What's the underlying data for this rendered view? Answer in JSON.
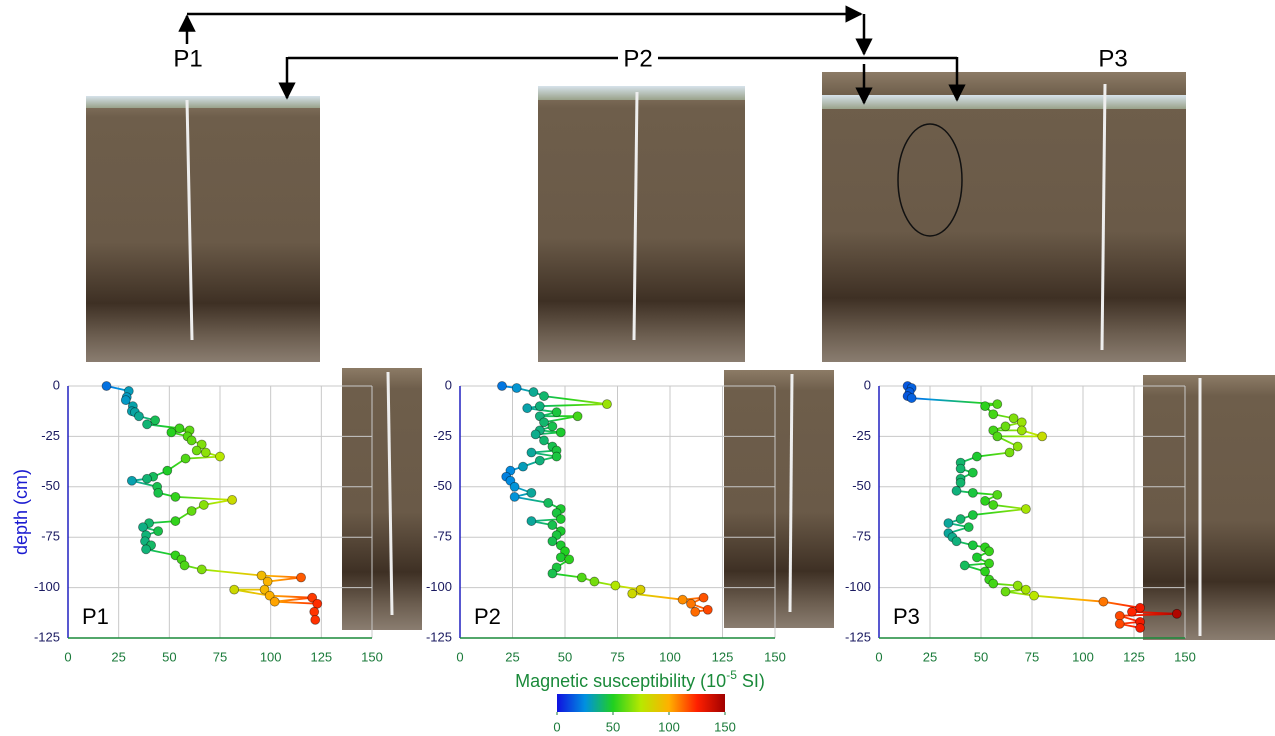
{
  "labels": [
    "P1",
    "P2",
    "P3"
  ],
  "shared_xlabel": {
    "parts": [
      "Magnetic susceptibility (10",
      "-5",
      " SI)"
    ]
  },
  "colorbar": {
    "lim": [
      0,
      150
    ],
    "ticks": [
      0,
      50,
      100,
      150
    ],
    "colors": [
      "#1010e0",
      "#0090e0",
      "#20d020",
      "#b8e800",
      "#ffb000",
      "#ff2000",
      "#a00000"
    ]
  },
  "chart_data": [
    {
      "type": "scatter",
      "title": "P1",
      "ylabel": "depth (cm)",
      "xlim": [
        0,
        150
      ],
      "ylim": [
        -125,
        0
      ],
      "xticks": [
        0,
        25,
        50,
        75,
        100,
        125,
        150
      ],
      "yticks": [
        0,
        -25,
        -50,
        -75,
        -100,
        -125
      ],
      "grid": true,
      "x": [
        19,
        30,
        29,
        28.5,
        32,
        31.5,
        33,
        35,
        43,
        39,
        55,
        60,
        51,
        59,
        61,
        66,
        63.5,
        68,
        75,
        58,
        49,
        42,
        39,
        31.5,
        44,
        44.5,
        53,
        81,
        67,
        61,
        53,
        40,
        37,
        44.5,
        38.5,
        38,
        41,
        38.5,
        53,
        56,
        57.5,
        66,
        95.5,
        115,
        98.5,
        97,
        82,
        99.5,
        120.5,
        102,
        123,
        121.5,
        122
      ],
      "y": [
        0,
        -2.5,
        -5.5,
        -7,
        -10,
        -12.5,
        -13,
        -15,
        -17,
        -19,
        -21,
        -22,
        -23,
        -25,
        -27,
        -29,
        -32,
        -33,
        -35,
        -36,
        -42,
        -45,
        -46,
        -47,
        -50,
        -53,
        -55,
        -56.5,
        -59,
        -62,
        -67,
        -68,
        -70,
        -72,
        -74,
        -77,
        -79,
        -81,
        -84,
        -86,
        -89,
        -91,
        -94,
        -95,
        -97,
        -101,
        -101,
        -104,
        -105,
        -107,
        -108,
        -112,
        -116
      ]
    },
    {
      "type": "scatter",
      "title": "P2",
      "xlim": [
        0,
        150
      ],
      "ylim": [
        -125,
        0
      ],
      "xticks": [
        0,
        25,
        50,
        75,
        100,
        125,
        150
      ],
      "yticks": [
        0,
        -25,
        -50,
        -75,
        -100,
        -125
      ],
      "grid": true,
      "x": [
        20,
        27,
        35,
        40,
        70,
        38,
        32,
        46,
        38,
        56,
        40,
        44,
        38,
        48,
        36,
        40,
        44,
        46,
        34,
        46,
        38,
        30,
        24,
        22,
        24,
        26,
        34,
        26,
        42,
        48,
        46,
        48,
        34,
        44,
        48,
        46,
        44,
        48,
        50,
        48,
        52,
        46,
        44,
        58,
        64,
        74,
        86,
        82,
        106,
        116,
        110,
        118,
        112
      ],
      "y": [
        0,
        -1,
        -3,
        -5,
        -9,
        -10,
        -11,
        -13,
        -15,
        -15,
        -18,
        -20,
        -22,
        -23,
        -24,
        -27,
        -30,
        -32,
        -33,
        -35,
        -37,
        -40,
        -42,
        -45,
        -47,
        -50,
        -53,
        -55,
        -58,
        -61,
        -63,
        -66,
        -67,
        -69,
        -72,
        -74,
        -77,
        -79,
        -82,
        -85,
        -86,
        -90,
        -93,
        -95,
        -97,
        -99,
        -101,
        -103,
        -106,
        -105,
        -108,
        -111,
        -112
      ]
    },
    {
      "type": "scatter",
      "title": "P3",
      "xlim": [
        0,
        150
      ],
      "ylim": [
        -125,
        0
      ],
      "xticks": [
        0,
        25,
        50,
        75,
        100,
        125,
        150
      ],
      "yticks": [
        0,
        -25,
        -50,
        -75,
        -100,
        -125
      ],
      "grid": true,
      "x": [
        14,
        16,
        15,
        14,
        16,
        58,
        52,
        56,
        66,
        70,
        62,
        56,
        70,
        80,
        58,
        68,
        64,
        48,
        40,
        40,
        46,
        40,
        40,
        38,
        46,
        58,
        52,
        56,
        72,
        46,
        40,
        34,
        44,
        34,
        36,
        38,
        46,
        52,
        54,
        48,
        54,
        42,
        52,
        54,
        56,
        68,
        72,
        62,
        76,
        110,
        128,
        124,
        146,
        118,
        128,
        118,
        128
      ],
      "y": [
        0,
        -1,
        -3,
        -5,
        -6,
        -9,
        -10,
        -14,
        -16,
        -18,
        -20,
        -22,
        -22,
        -25,
        -25,
        -30,
        -33,
        -35,
        -38,
        -41,
        -43,
        -46,
        -48,
        -52,
        -53,
        -54,
        -57,
        -59,
        -61,
        -64,
        -66,
        -68,
        -70,
        -73,
        -75,
        -77,
        -79,
        -80,
        -82,
        -85,
        -88,
        -89,
        -92,
        -96,
        -98,
        -99,
        -101,
        -102,
        -104,
        -107,
        -110,
        -112,
        -113,
        -114,
        -117,
        -118,
        -120
      ]
    }
  ]
}
